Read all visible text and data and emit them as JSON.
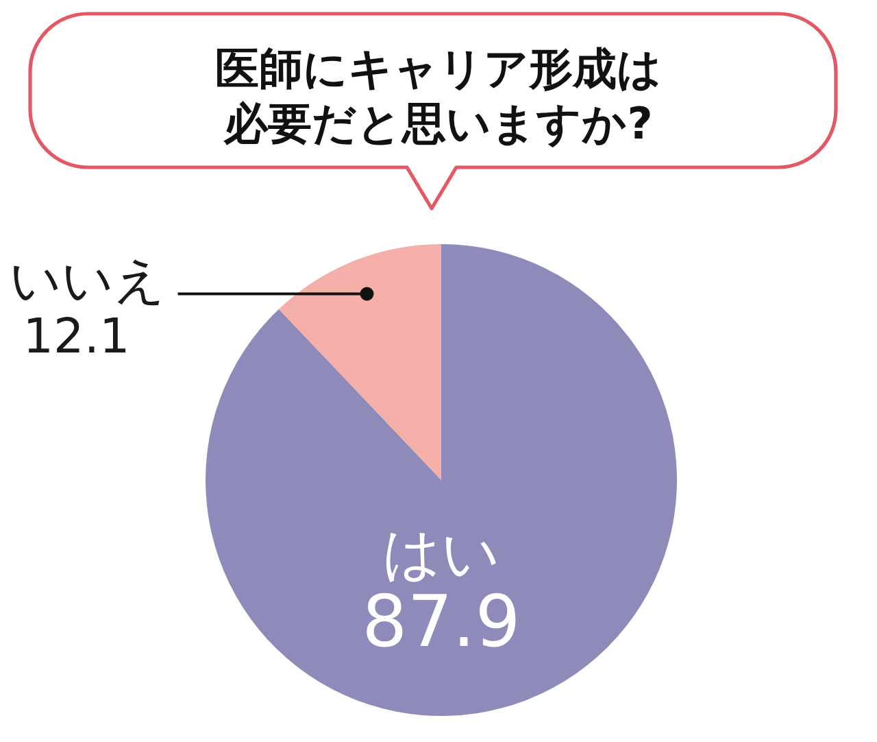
{
  "chart_data": {
    "type": "pie",
    "title": "医師にキャリア形成は必要だと思いますか?",
    "categories": [
      "はい",
      "いいえ"
    ],
    "values": [
      87.9,
      12.1
    ],
    "colors": [
      "#8e8bbb",
      "#f4b0a8"
    ],
    "data_labels": true
  }
}
